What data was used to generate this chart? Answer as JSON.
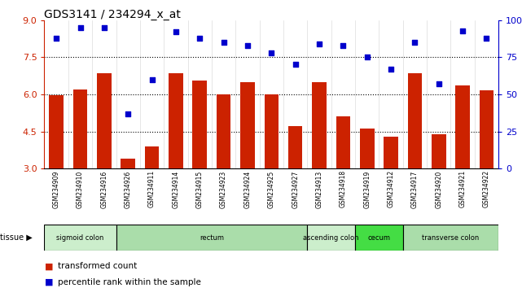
{
  "title": "GDS3141 / 234294_x_at",
  "samples": [
    "GSM234909",
    "GSM234910",
    "GSM234916",
    "GSM234926",
    "GSM234911",
    "GSM234914",
    "GSM234915",
    "GSM234923",
    "GSM234924",
    "GSM234925",
    "GSM234927",
    "GSM234913",
    "GSM234918",
    "GSM234919",
    "GSM234912",
    "GSM234917",
    "GSM234920",
    "GSM234921",
    "GSM234922"
  ],
  "bar_values": [
    5.95,
    6.2,
    6.85,
    3.4,
    3.9,
    6.85,
    6.55,
    6.0,
    6.5,
    6.0,
    4.7,
    6.5,
    5.1,
    4.6,
    4.3,
    6.85,
    4.4,
    6.35,
    6.15
  ],
  "dot_values": [
    88,
    95,
    95,
    37,
    60,
    92,
    88,
    85,
    83,
    78,
    70,
    84,
    83,
    75,
    67,
    85,
    57,
    93,
    88
  ],
  "ylim_left": [
    3,
    9
  ],
  "ylim_right": [
    0,
    100
  ],
  "yticks_left": [
    3,
    4.5,
    6,
    7.5,
    9
  ],
  "yticks_right": [
    0,
    25,
    50,
    75,
    100
  ],
  "hlines": [
    4.5,
    6.0,
    7.5
  ],
  "bar_color": "#cc2200",
  "dot_color": "#0000cc",
  "bar_width": 0.6,
  "tissue_groups": [
    {
      "label": "sigmoid colon",
      "start": 0,
      "end": 3,
      "color": "#cceecc"
    },
    {
      "label": "rectum",
      "start": 3,
      "end": 11,
      "color": "#aaddaa"
    },
    {
      "label": "ascending colon",
      "start": 11,
      "end": 13,
      "color": "#cceecc"
    },
    {
      "label": "cecum",
      "start": 13,
      "end": 15,
      "color": "#44dd44"
    },
    {
      "label": "transverse colon",
      "start": 15,
      "end": 19,
      "color": "#aaddaa"
    }
  ],
  "legend_items": [
    {
      "label": "transformed count",
      "color": "#cc2200"
    },
    {
      "label": "percentile rank within the sample",
      "color": "#0000cc"
    }
  ],
  "right_axis_label_color": "#0000cc",
  "left_axis_label_color": "#cc2200",
  "figsize": [
    6.41,
    3.54
  ],
  "dpi": 100
}
